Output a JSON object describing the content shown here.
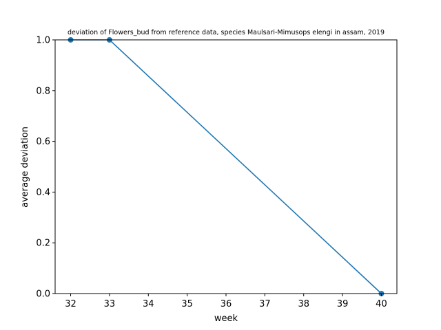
{
  "chart_data": {
    "type": "line",
    "title": "deviation of Flowers_bud from reference data, species Maulsari-Mimusops elengi in assam, 2019",
    "xlabel": "week",
    "ylabel": "average deviation",
    "xlim": [
      31.6,
      40.4
    ],
    "ylim": [
      0.0,
      1.0
    ],
    "xticks": [
      32,
      33,
      34,
      35,
      36,
      37,
      38,
      39,
      40
    ],
    "yticks": [
      0.0,
      0.2,
      0.4,
      0.6,
      0.8,
      1.0
    ],
    "ytick_labels": [
      "0.0",
      "0.2",
      "0.4",
      "0.6",
      "0.8",
      "1.0"
    ],
    "grid": false,
    "series": [
      {
        "x": [
          32,
          33,
          40
        ],
        "y": [
          1.0,
          1.0,
          0.0
        ],
        "color": "#1f77b4",
        "marker": "circle"
      }
    ]
  }
}
